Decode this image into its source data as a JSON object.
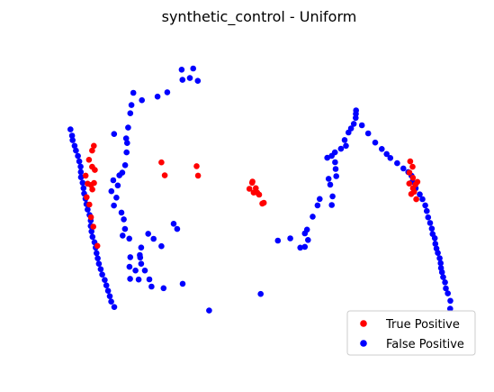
{
  "chart_data": {
    "type": "scatter",
    "title": "synthetic_control - Uniform",
    "xlabel": "",
    "ylabel": "",
    "axes_visible": false,
    "grid": false,
    "xlim": [
      -1.1,
      1.1
    ],
    "ylim": [
      -1.0,
      0.95
    ],
    "legend": {
      "placement": "lower-right",
      "entries": [
        "True Positive",
        "False Positive"
      ]
    },
    "series": [
      {
        "name": "True Positive",
        "color": "#ff0000",
        "points": [
          [
            -0.502,
            0.18
          ],
          [
            -0.485,
            0.101
          ],
          [
            -0.321,
            0.157
          ],
          [
            -0.314,
            0.099
          ],
          [
            -0.05,
            0.019
          ],
          [
            -0.034,
            0.063
          ],
          [
            -0.036,
            0.056
          ],
          [
            -0.017,
            0.023
          ],
          [
            -0.028,
            -0.004
          ],
          [
            -0.01,
            -0.004
          ],
          [
            0.0,
            -0.017
          ],
          [
            0.016,
            -0.071
          ],
          [
            0.024,
            -0.066
          ],
          [
            -0.849,
            0.281
          ],
          [
            -0.858,
            0.252
          ],
          [
            -0.874,
            0.196
          ],
          [
            -0.858,
            0.153
          ],
          [
            -0.844,
            0.134
          ],
          [
            -0.891,
            0.099
          ],
          [
            -0.881,
            0.05
          ],
          [
            -0.864,
            0.042
          ],
          [
            -0.848,
            0.054
          ],
          [
            -0.857,
            0.015
          ],
          [
            -0.886,
            -0.032
          ],
          [
            -0.872,
            -0.077
          ],
          [
            -0.864,
            -0.154
          ],
          [
            -0.852,
            -0.212
          ],
          [
            -0.831,
            -0.329
          ],
          [
            0.776,
            0.186
          ],
          [
            0.788,
            0.153
          ],
          [
            0.772,
            0.118
          ],
          [
            0.79,
            0.086
          ],
          [
            0.771,
            0.051
          ],
          [
            0.79,
            0.022
          ],
          [
            0.803,
            0.045
          ],
          [
            0.813,
            0.061
          ],
          [
            0.796,
            0.001
          ],
          [
            0.781,
            -0.013
          ],
          [
            0.807,
            -0.045
          ]
        ]
      },
      {
        "name": "False Positive",
        "color": "#0000ff",
        "points": [
          [
            -0.398,
            0.745
          ],
          [
            -0.339,
            0.752
          ],
          [
            -0.356,
            0.694
          ],
          [
            -0.394,
            0.683
          ],
          [
            -0.315,
            0.677
          ],
          [
            -0.472,
            0.607
          ],
          [
            -0.522,
            0.581
          ],
          [
            -0.602,
            0.559
          ],
          [
            -0.646,
            0.604
          ],
          [
            -0.656,
            0.529
          ],
          [
            -0.662,
            0.479
          ],
          [
            -0.673,
            0.392
          ],
          [
            -0.683,
            0.326
          ],
          [
            -0.678,
            0.298
          ],
          [
            -0.745,
            0.353
          ],
          [
            -0.681,
            0.241
          ],
          [
            -0.688,
            0.163
          ],
          [
            -0.703,
            0.117
          ],
          [
            -0.718,
            0.101
          ],
          [
            -0.749,
            0.071
          ],
          [
            -0.726,
            0.039
          ],
          [
            -0.759,
            0.004
          ],
          [
            -0.733,
            -0.035
          ],
          [
            -0.746,
            -0.083
          ],
          [
            -0.707,
            -0.126
          ],
          [
            -0.695,
            -0.167
          ],
          [
            -0.689,
            -0.226
          ],
          [
            -0.701,
            -0.266
          ],
          [
            -0.667,
            -0.285
          ],
          [
            -0.606,
            -0.339
          ],
          [
            -0.613,
            -0.385
          ],
          [
            -0.662,
            -0.398
          ],
          [
            -0.611,
            -0.4
          ],
          [
            -0.606,
            -0.438
          ],
          [
            -0.587,
            -0.479
          ],
          [
            -0.635,
            -0.479
          ],
          [
            -0.666,
            -0.457
          ],
          [
            -0.564,
            -0.533
          ],
          [
            -0.619,
            -0.534
          ],
          [
            -0.553,
            -0.577
          ],
          [
            -0.663,
            -0.53
          ],
          [
            -0.491,
            -0.587
          ],
          [
            -0.57,
            -0.255
          ],
          [
            -0.542,
            -0.286
          ],
          [
            -0.502,
            -0.331
          ],
          [
            -0.439,
            -0.194
          ],
          [
            -0.421,
            -0.226
          ],
          [
            -0.393,
            -0.56
          ],
          [
            -0.257,
            -0.723
          ],
          [
            0.008,
            -0.622
          ],
          [
            0.096,
            -0.297
          ],
          [
            0.16,
            -0.283
          ],
          [
            0.211,
            -0.34
          ],
          [
            0.235,
            -0.335
          ],
          [
            0.251,
            -0.293
          ],
          [
            0.235,
            -0.253
          ],
          [
            0.246,
            -0.23
          ],
          [
            0.275,
            -0.151
          ],
          [
            0.3,
            -0.082
          ],
          [
            0.311,
            -0.043
          ],
          [
            0.373,
            -0.08
          ],
          [
            0.377,
            -0.027
          ],
          [
            0.365,
            0.044
          ],
          [
            0.357,
            0.08
          ],
          [
            0.396,
            0.096
          ],
          [
            0.393,
            0.14
          ],
          [
            0.39,
            0.181
          ],
          [
            0.35,
            0.208
          ],
          [
            0.373,
            0.22
          ],
          [
            0.389,
            0.241
          ],
          [
            0.42,
            0.263
          ],
          [
            0.446,
            0.281
          ],
          [
            0.439,
            0.316
          ],
          [
            0.459,
            0.362
          ],
          [
            0.472,
            0.387
          ],
          [
            0.486,
            0.415
          ],
          [
            0.496,
            0.451
          ],
          [
            0.497,
            0.476
          ],
          [
            0.498,
            0.497
          ],
          [
            0.528,
            0.406
          ],
          [
            0.56,
            0.357
          ],
          [
            0.596,
            0.301
          ],
          [
            0.63,
            0.262
          ],
          [
            0.655,
            0.231
          ],
          [
            0.674,
            0.207
          ],
          [
            0.709,
            0.175
          ],
          [
            0.741,
            0.143
          ],
          [
            0.766,
            0.121
          ],
          [
            0.783,
            0.098
          ],
          [
            0.786,
            0.061
          ],
          [
            0.804,
            0.022
          ],
          [
            0.825,
            -0.015
          ],
          [
            0.839,
            -0.044
          ],
          [
            0.853,
            -0.082
          ],
          [
            0.861,
            -0.117
          ],
          [
            0.868,
            -0.155
          ],
          [
            0.878,
            -0.189
          ],
          [
            0.887,
            -0.224
          ],
          [
            0.891,
            -0.257
          ],
          [
            0.902,
            -0.282
          ],
          [
            0.905,
            -0.316
          ],
          [
            0.911,
            -0.345
          ],
          [
            0.918,
            -0.372
          ],
          [
            0.927,
            -0.404
          ],
          [
            0.932,
            -0.434
          ],
          [
            0.934,
            -0.464
          ],
          [
            0.939,
            -0.489
          ],
          [
            0.945,
            -0.52
          ],
          [
            0.955,
            -0.551
          ],
          [
            0.959,
            -0.588
          ],
          [
            0.969,
            -0.619
          ],
          [
            0.982,
            -0.664
          ],
          [
            0.981,
            -0.712
          ],
          [
            0.997,
            -0.761
          ],
          [
            1.007,
            -0.799
          ],
          [
            1.021,
            -0.846
          ],
          [
            1.018,
            -0.891
          ],
          [
            1.022,
            -0.925
          ],
          [
            -0.969,
            0.381
          ],
          [
            -0.961,
            0.343
          ],
          [
            -0.958,
            0.315
          ],
          [
            -0.948,
            0.281
          ],
          [
            -0.941,
            0.252
          ],
          [
            -0.931,
            0.219
          ],
          [
            -0.924,
            0.186
          ],
          [
            -0.917,
            0.154
          ],
          [
            -0.916,
            0.121
          ],
          [
            -0.915,
            0.089
          ],
          [
            -0.907,
            0.056
          ],
          [
            -0.902,
            0.023
          ],
          [
            -0.899,
            -0.01
          ],
          [
            -0.892,
            -0.042
          ],
          [
            -0.887,
            -0.075
          ],
          [
            -0.881,
            -0.108
          ],
          [
            -0.871,
            -0.141
          ],
          [
            -0.865,
            -0.175
          ],
          [
            -0.865,
            -0.208
          ],
          [
            -0.861,
            -0.241
          ],
          [
            -0.856,
            -0.274
          ],
          [
            -0.846,
            -0.307
          ],
          [
            -0.84,
            -0.34
          ],
          [
            -0.835,
            -0.373
          ],
          [
            -0.829,
            -0.405
          ],
          [
            -0.823,
            -0.438
          ],
          [
            -0.814,
            -0.471
          ],
          [
            -0.806,
            -0.504
          ],
          [
            -0.793,
            -0.537
          ],
          [
            -0.785,
            -0.57
          ],
          [
            -0.776,
            -0.603
          ],
          [
            -0.767,
            -0.636
          ],
          [
            -0.76,
            -0.669
          ],
          [
            -0.744,
            -0.702
          ]
        ]
      }
    ]
  }
}
